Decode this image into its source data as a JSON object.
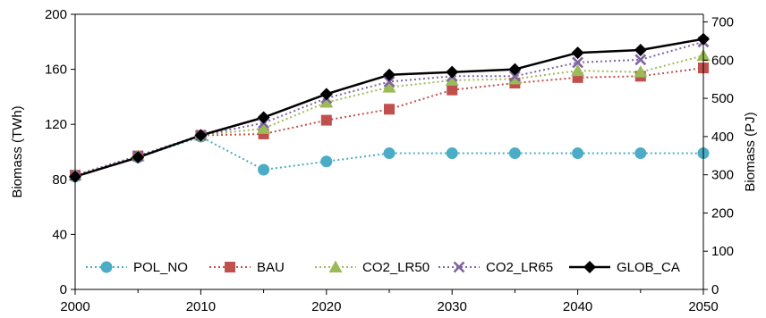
{
  "chart_data": {
    "type": "line",
    "title": "",
    "xlabel": "",
    "ylabel": "Biomass (TWh)",
    "ylabel_right": "Biomass (PJ)",
    "xlim": [
      2000,
      2050
    ],
    "ylim": [
      0,
      200
    ],
    "ylim_right": [
      0,
      720
    ],
    "x_ticks": [
      2000,
      2010,
      2020,
      2030,
      2040,
      2050
    ],
    "y_ticks": [
      0,
      40,
      80,
      120,
      160,
      200
    ],
    "y_ticks_right": [
      0,
      100,
      200,
      300,
      400,
      500,
      600,
      700
    ],
    "grid": false,
    "legend_position": "bottom-inside",
    "x": [
      2000,
      2005,
      2010,
      2015,
      2020,
      2025,
      2030,
      2035,
      2040,
      2045,
      2050
    ],
    "series": [
      {
        "name": "POL_NO",
        "color": "#4BACC6",
        "marker": "circle",
        "line_style": "dotted",
        "values": [
          82,
          96,
          111,
          87,
          93,
          99,
          99,
          99,
          99,
          99,
          99
        ]
      },
      {
        "name": "BAU",
        "color": "#C0504D",
        "marker": "square",
        "line_style": "dotted",
        "values": [
          83,
          97,
          112,
          113,
          123,
          131,
          145,
          150,
          154,
          155,
          161
        ]
      },
      {
        "name": "CO2_LR50",
        "color": "#9BBB59",
        "marker": "triangle",
        "line_style": "dotted",
        "values": [
          83,
          97,
          112,
          117,
          136,
          147,
          152,
          153,
          159,
          158,
          170
        ]
      },
      {
        "name": "CO2_LR65",
        "color": "#8064A2",
        "marker": "x",
        "line_style": "dotted",
        "values": [
          83,
          97,
          112,
          121,
          139,
          151,
          155,
          155,
          165,
          167,
          180
        ]
      },
      {
        "name": "GLOB_CA",
        "color": "#000000",
        "marker": "diamond",
        "line_style": "solid",
        "values": [
          82,
          96,
          112,
          125,
          142,
          156,
          158,
          160,
          172,
          174,
          182
        ]
      }
    ]
  }
}
